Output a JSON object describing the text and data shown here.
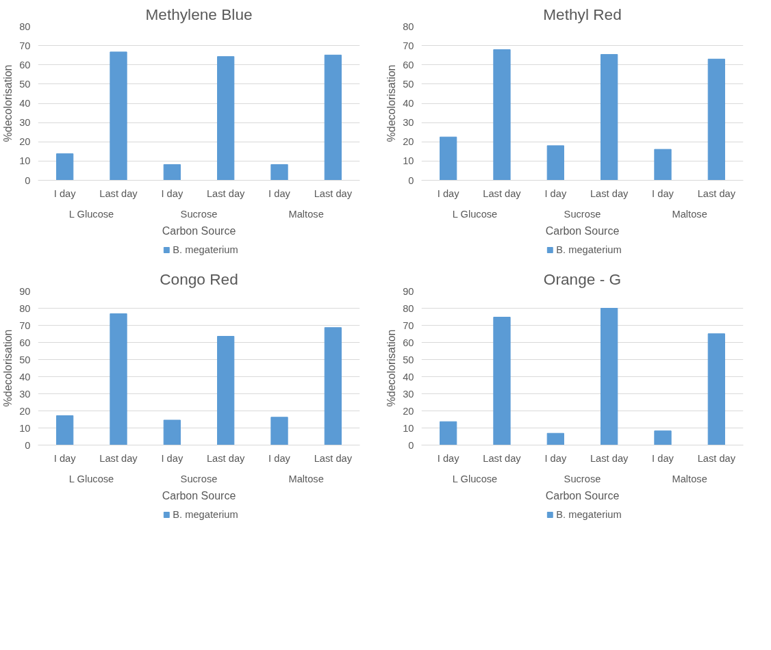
{
  "chart_data": [
    {
      "type": "bar",
      "title": "Methylene Blue",
      "xlabel": "Carbon Source",
      "ylabel": "%decolorisation",
      "categories": [
        "I day",
        "Last day",
        "I day",
        "Last day",
        "I day",
        "Last day"
      ],
      "annotations": [
        "L Glucose",
        "Sucrose",
        "Maltose"
      ],
      "series": [
        {
          "name": "B. megaterium",
          "color": "#5b9bd5",
          "values": [
            13.8,
            66.7,
            8.2,
            64.3,
            8.2,
            65.1
          ]
        }
      ],
      "ylim": [
        0,
        80
      ],
      "yticks": [
        0,
        10,
        20,
        30,
        40,
        50,
        60,
        70,
        80
      ],
      "grid": "y",
      "legend": "bottom"
    },
    {
      "type": "bar",
      "title": "Methyl Red",
      "xlabel": "Carbon Source",
      "ylabel": "%decolorisation",
      "categories": [
        "I day",
        "Last day",
        "I day",
        "Last day",
        "I day",
        "Last day"
      ],
      "annotations": [
        "L Glucose",
        "Sucrose",
        "Maltose"
      ],
      "series": [
        {
          "name": "B. megaterium",
          "color": "#5b9bd5",
          "values": [
            22.5,
            67.9,
            18.0,
            65.4,
            16.1,
            63.0
          ]
        }
      ],
      "ylim": [
        0,
        80
      ],
      "yticks": [
        0,
        10,
        20,
        30,
        40,
        50,
        60,
        70,
        80
      ],
      "grid": "y",
      "legend": "bottom"
    },
    {
      "type": "bar",
      "title": "Congo Red",
      "xlabel": "Carbon Source",
      "ylabel": "%decolorisation",
      "categories": [
        "I day",
        "Last day",
        "I day",
        "Last day",
        "I day",
        "Last day"
      ],
      "annotations": [
        "L Glucose",
        "Sucrose",
        "Maltose"
      ],
      "series": [
        {
          "name": "B. megaterium",
          "color": "#5b9bd5",
          "values": [
            17.2,
            76.8,
            14.6,
            63.6,
            16.3,
            68.7
          ]
        }
      ],
      "ylim": [
        0,
        90
      ],
      "yticks": [
        0,
        10,
        20,
        30,
        40,
        50,
        60,
        70,
        80,
        90
      ],
      "grid": "y",
      "legend": "bottom"
    },
    {
      "type": "bar",
      "title": "Orange - G",
      "xlabel": "Carbon Source",
      "ylabel": "%decolorisation",
      "categories": [
        "I day",
        "Last day",
        "I day",
        "Last day",
        "I day",
        "Last day"
      ],
      "annotations": [
        "L Glucose",
        "Sucrose",
        "Maltose"
      ],
      "series": [
        {
          "name": "B. megaterium",
          "color": "#5b9bd5",
          "values": [
            13.7,
            74.8,
            6.9,
            80.0,
            8.3,
            65.1
          ]
        }
      ],
      "ylim": [
        0,
        90
      ],
      "yticks": [
        0,
        10,
        20,
        30,
        40,
        50,
        60,
        70,
        80,
        90
      ],
      "grid": "y",
      "legend": "bottom"
    }
  ]
}
